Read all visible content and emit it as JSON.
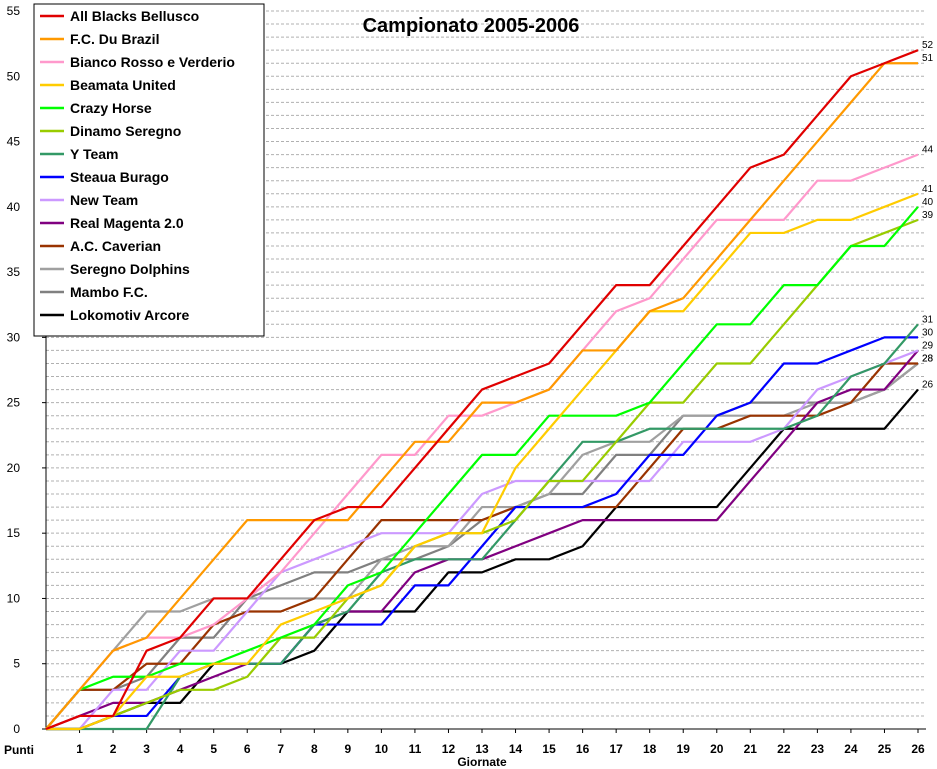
{
  "chart_data": {
    "type": "line",
    "title": "Campionato 2005-2006",
    "xlabel": "Giornate",
    "ylabel": "Punti",
    "x": [
      0,
      1,
      2,
      3,
      4,
      5,
      6,
      7,
      8,
      9,
      10,
      11,
      12,
      13,
      14,
      15,
      16,
      17,
      18,
      19,
      20,
      21,
      22,
      23,
      24,
      25,
      26
    ],
    "xtick_labels": [
      "1",
      "2",
      "3",
      "4",
      "5",
      "6",
      "7",
      "8",
      "9",
      "10",
      "11",
      "12",
      "13",
      "14",
      "15",
      "16",
      "17",
      "18",
      "19",
      "20",
      "21",
      "22",
      "23",
      "24",
      "25",
      "26"
    ],
    "xlim": [
      0,
      26
    ],
    "ylim": [
      0,
      55
    ],
    "yticks": [
      0,
      5,
      10,
      15,
      20,
      25,
      30,
      35,
      40,
      45,
      50,
      55
    ],
    "grid": "horizontal dashed",
    "legend_position": "top-left",
    "series": [
      {
        "name": "All Blacks Bellusco",
        "color": "#e00000",
        "values": [
          0,
          1,
          1,
          6,
          7,
          10,
          10,
          13,
          16,
          17,
          17,
          20,
          23,
          26,
          27,
          28,
          31,
          34,
          34,
          37,
          40,
          43,
          44,
          47,
          50,
          51,
          52
        ],
        "end_label": "52"
      },
      {
        "name": "F.C. Du Brazil",
        "color": "#ff9900",
        "values": [
          0,
          3,
          6,
          7,
          10,
          13,
          16,
          16,
          16,
          16,
          19,
          22,
          22,
          25,
          25,
          26,
          29,
          29,
          32,
          33,
          36,
          39,
          42,
          45,
          48,
          51,
          51
        ],
        "end_label": "51"
      },
      {
        "name": "Bianco Rosso e Verderio",
        "color": "#ff99cc",
        "values": [
          0,
          3,
          6,
          7,
          7,
          8,
          10,
          12,
          15,
          18,
          21,
          21,
          24,
          24,
          25,
          26,
          29,
          32,
          33,
          36,
          39,
          39,
          39,
          42,
          42,
          43,
          44
        ],
        "end_label": "44"
      },
      {
        "name": "Beamata United",
        "color": "#ffcc00",
        "values": [
          0,
          0,
          1,
          4,
          4,
          5,
          5,
          8,
          9,
          10,
          11,
          14,
          15,
          15,
          20,
          23,
          26,
          29,
          32,
          32,
          35,
          38,
          38,
          39,
          39,
          40,
          41
        ],
        "end_label": "41"
      },
      {
        "name": "Crazy Horse",
        "color": "#00ff00",
        "values": [
          0,
          3,
          4,
          4,
          5,
          5,
          6,
          7,
          8,
          11,
          12,
          15,
          18,
          21,
          21,
          24,
          24,
          24,
          25,
          28,
          31,
          31,
          34,
          34,
          37,
          37,
          40
        ],
        "end_label": "40"
      },
      {
        "name": "Dinamo Seregno",
        "color": "#99cc00",
        "values": [
          0,
          0,
          1,
          2,
          3,
          3,
          4,
          7,
          7,
          10,
          11,
          14,
          15,
          15,
          16,
          19,
          19,
          22,
          25,
          25,
          28,
          28,
          31,
          34,
          37,
          38,
          39
        ],
        "end_label": "39"
      },
      {
        "name": "Y Team",
        "color": "#339966",
        "values": [
          0,
          0,
          0,
          0,
          4,
          5,
          5,
          5,
          8,
          9,
          12,
          13,
          13,
          13,
          16,
          19,
          22,
          22,
          23,
          23,
          23,
          23,
          23,
          24,
          27,
          28,
          31
        ],
        "end_label": "31"
      },
      {
        "name": "Steaua Burago",
        "color": "#0000ff",
        "values": [
          0,
          0,
          1,
          1,
          4,
          5,
          5,
          5,
          8,
          8,
          8,
          11,
          11,
          14,
          17,
          17,
          17,
          18,
          21,
          21,
          24,
          25,
          28,
          28,
          29,
          30,
          30
        ],
        "end_label": "30"
      },
      {
        "name": "New Team",
        "color": "#cc99ff",
        "values": [
          0,
          0,
          3,
          3,
          6,
          6,
          9,
          12,
          13,
          14,
          15,
          15,
          15,
          18,
          19,
          19,
          19,
          19,
          19,
          22,
          22,
          22,
          23,
          26,
          27,
          28,
          29
        ],
        "end_label": "29"
      },
      {
        "name": "Real Magenta 2.0",
        "color": "#800080",
        "values": [
          0,
          1,
          2,
          2,
          3,
          4,
          5,
          5,
          8,
          9,
          9,
          12,
          13,
          13,
          14,
          15,
          16,
          16,
          16,
          16,
          16,
          19,
          22,
          25,
          26,
          26,
          29
        ],
        "end_label": ""
      },
      {
        "name": "A.C. Caverian",
        "color": "#993300",
        "values": [
          0,
          3,
          3,
          5,
          5,
          8,
          9,
          9,
          10,
          13,
          16,
          16,
          16,
          16,
          17,
          17,
          17,
          17,
          20,
          23,
          23,
          24,
          24,
          24,
          25,
          28,
          28
        ],
        "end_label": "28"
      },
      {
        "name": "Seregno Dolphins",
        "color": "#a0a0a0",
        "values": [
          0,
          3,
          6,
          9,
          9,
          10,
          10,
          10,
          10,
          10,
          13,
          14,
          14,
          17,
          17,
          18,
          21,
          22,
          22,
          24,
          24,
          24,
          24,
          25,
          25,
          26,
          28
        ],
        "end_label": "28"
      },
      {
        "name": "Mambo F.C.",
        "color": "#808080",
        "values": [
          0,
          3,
          3,
          4,
          7,
          7,
          10,
          11,
          12,
          12,
          13,
          13,
          14,
          16,
          17,
          18,
          18,
          21,
          21,
          24,
          24,
          25,
          25,
          25,
          25,
          26,
          28
        ],
        "end_label": ""
      },
      {
        "name": "Lokomotiv Arcore",
        "color": "#000000",
        "values": [
          0,
          0,
          1,
          2,
          2,
          5,
          5,
          5,
          6,
          9,
          9,
          9,
          12,
          12,
          13,
          13,
          14,
          17,
          17,
          17,
          17,
          20,
          23,
          23,
          23,
          23,
          26
        ],
        "end_label": "26"
      }
    ]
  }
}
